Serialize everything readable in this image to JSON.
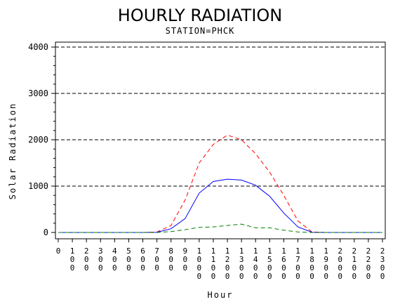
{
  "chart_data": {
    "type": "line",
    "title": "HOURLY RADIATION",
    "subtitle": "STATION=PHCK",
    "xlabel": "Hour",
    "ylabel": "Solar Radiation",
    "x": [
      0,
      100,
      200,
      300,
      400,
      500,
      600,
      700,
      800,
      900,
      1000,
      1100,
      1200,
      1300,
      1400,
      1500,
      1600,
      1700,
      1800,
      1900,
      2000,
      2100,
      2200,
      2300
    ],
    "xticks": [
      "0",
      "100",
      "200",
      "300",
      "400",
      "500",
      "600",
      "700",
      "800",
      "900",
      "1000",
      "1100",
      "1200",
      "1300",
      "1400",
      "1500",
      "1600",
      "1700",
      "1800",
      "1900",
      "2000",
      "2100",
      "2200",
      "2300"
    ],
    "yticks": [
      "0",
      "1000",
      "2000",
      "3000",
      "4000"
    ],
    "ylim": [
      0,
      4000
    ],
    "xlim": [
      0,
      2300
    ],
    "grid": "horizontal dashed",
    "series": [
      {
        "color": "#ff0000",
        "style": "dashed",
        "values": [
          0,
          0,
          0,
          0,
          0,
          0,
          0,
          10,
          150,
          700,
          1500,
          1900,
          2100,
          2000,
          1700,
          1300,
          800,
          250,
          10,
          0,
          0,
          0,
          0,
          0
        ]
      },
      {
        "color": "#0000ff",
        "style": "solid",
        "values": [
          0,
          0,
          0,
          0,
          0,
          0,
          0,
          5,
          80,
          300,
          850,
          1100,
          1150,
          1130,
          1020,
          780,
          420,
          120,
          5,
          0,
          0,
          0,
          0,
          0
        ]
      },
      {
        "color": "#008000",
        "style": "dashed",
        "values": [
          0,
          0,
          0,
          0,
          0,
          0,
          0,
          0,
          20,
          60,
          110,
          120,
          150,
          180,
          100,
          100,
          50,
          10,
          0,
          0,
          0,
          0,
          0,
          0
        ]
      }
    ]
  }
}
